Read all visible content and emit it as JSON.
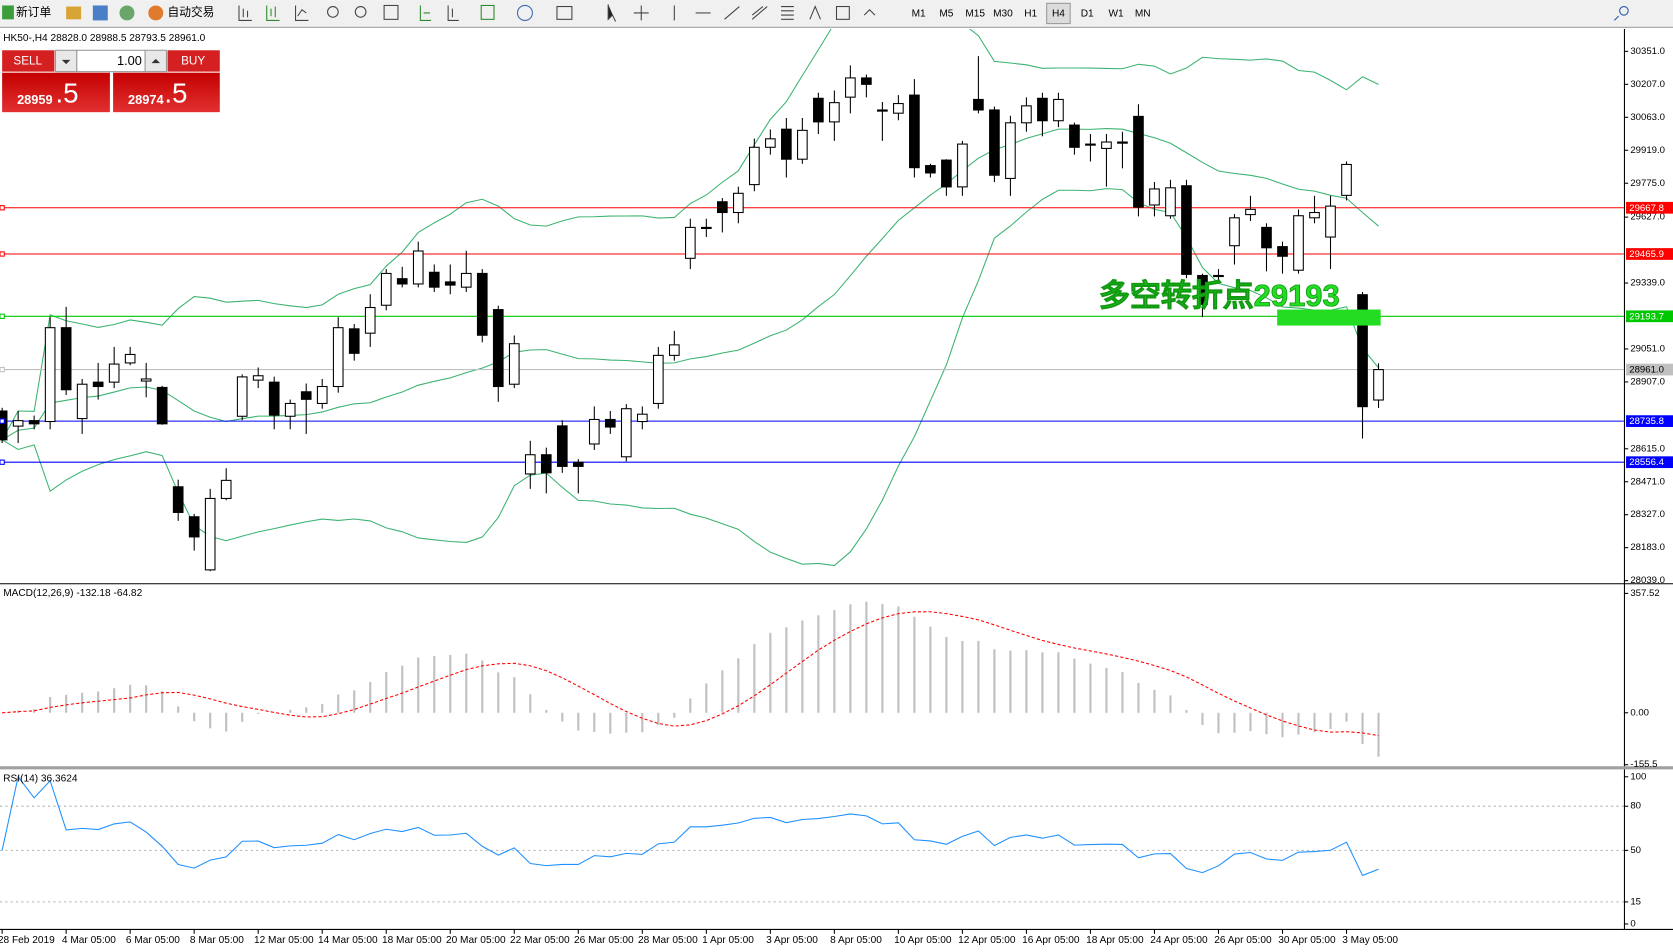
{
  "toolbar": {
    "new_order": "新订单",
    "auto_trading": "自动交易",
    "timeframes": [
      "M1",
      "M5",
      "M15",
      "M30",
      "H1",
      "H4",
      "D1",
      "W1",
      "MN"
    ],
    "active": "H4"
  },
  "trade_panel": {
    "sell": "SELL",
    "buy": "BUY",
    "lots": "1.00",
    "sell_price": "28959",
    "sell_pips": ".5",
    "buy_price": "28974",
    "buy_pips": ".5"
  },
  "chart_data": {
    "type": "candlestick",
    "title": "HK50-,H4  28828.0 28988.5 28793.5 28961.0",
    "categories": [
      "28 Feb 2019",
      null,
      null,
      null,
      "4 Mar 05:00",
      null,
      null,
      null,
      "6 Mar 05:00",
      null,
      null,
      null,
      "8 Mar 05:00",
      null,
      null,
      null,
      "12 Mar 05:00",
      null,
      null,
      null,
      "14 Mar 05:00",
      null,
      null,
      null,
      "18 Mar 05:00",
      null,
      null,
      null,
      "20 Mar 05:00",
      null,
      null,
      null,
      "22 Mar 05:00",
      null,
      null,
      null,
      "26 Mar 05:00",
      null,
      null,
      null,
      "28 Mar 05:00",
      null,
      null,
      null,
      "1 Apr 05:00",
      null,
      null,
      null,
      "3 Apr 05:00",
      null,
      null,
      null,
      "8 Apr 05:00",
      null,
      null,
      null,
      "10 Apr 05:00",
      null,
      null,
      null,
      "12 Apr 05:00",
      null,
      null,
      null,
      "16 Apr 05:00",
      null,
      null,
      null,
      "18 Apr 05:00",
      null,
      null,
      null,
      "24 Apr 05:00",
      null,
      null,
      null,
      "26 Apr 05:00",
      null,
      null,
      null,
      "30 Apr 05:00",
      null,
      null,
      null,
      "3 May 05:00",
      null,
      null
    ],
    "open": [
      28780,
      28714,
      28738,
      28734,
      29144,
      28747,
      28906,
      28906,
      28990,
      28911,
      28883,
      28449,
      28318,
      28086,
      28398,
      28757,
      28915,
      28906,
      28757,
      28864,
      28813,
      28887,
      29139,
      29120,
      29242,
      29358,
      29335,
      29386,
      29344,
      29321,
      29381,
      29223,
      28897,
      28505,
      28589,
      28715,
      28556,
      28636,
      28743,
      28580,
      28734,
      28813,
      29023,
      29447,
      29578,
      29694,
      29647,
      29769,
      29932,
      30011,
      29880,
      30146,
      30043,
      30151,
      30235,
      30095,
      30081,
      30160,
      29852,
      29876,
      29759,
      30141,
      30095,
      29796,
      30039,
      30146,
      30048,
      30029,
      29946,
      29927,
      29955,
      30067,
      29680,
      29633,
      29764,
      29372,
      29372,
      29502,
      29638,
      29582,
      29498,
      29395,
      29624,
      29540,
      29722,
      29288,
      28828
    ],
    "high": [
      28794,
      28780,
      28760,
      29190,
      29235,
      28920,
      28990,
      29060,
      29060,
      28990,
      28890,
      28480,
      28330,
      28440,
      28530,
      28940,
      28970,
      28930,
      28830,
      28900,
      28920,
      29190,
      29160,
      29290,
      29400,
      29410,
      29520,
      29420,
      29420,
      29480,
      29400,
      29240,
      29110,
      28650,
      28620,
      28740,
      28570,
      28800,
      28780,
      28810,
      28800,
      29060,
      29130,
      29620,
      29620,
      29710,
      29760,
      29970,
      30010,
      30060,
      30060,
      30170,
      30180,
      30290,
      30250,
      30130,
      30160,
      30230,
      29860,
      29880,
      29960,
      30330,
      30110,
      30070,
      30150,
      30170,
      30170,
      30040,
      29990,
      29990,
      30000,
      30120,
      29780,
      29790,
      29790,
      29380,
      29400,
      29640,
      29720,
      29600,
      29520,
      29660,
      29720,
      29720,
      29870,
      29300,
      28988.5
    ],
    "low": [
      28640,
      28640,
      28700,
      28700,
      28850,
      28680,
      28830,
      28880,
      28980,
      28840,
      28720,
      28300,
      28170,
      28080,
      28390,
      28740,
      28880,
      28700,
      28700,
      28680,
      28790,
      28860,
      29000,
      29060,
      29220,
      29320,
      29320,
      29300,
      29290,
      29300,
      29080,
      28820,
      28880,
      28440,
      28420,
      28510,
      28420,
      28610,
      28680,
      28560,
      28700,
      28790,
      29000,
      29400,
      29540,
      29560,
      29600,
      29740,
      29900,
      29800,
      29860,
      29990,
      29960,
      30080,
      30150,
      29960,
      30050,
      29800,
      29800,
      29720,
      29720,
      30080,
      29780,
      29720,
      30000,
      29980,
      30020,
      29900,
      29870,
      29760,
      29840,
      29630,
      29630,
      29620,
      29360,
      29190,
      29340,
      29420,
      29610,
      29390,
      29380,
      29380,
      29600,
      29400,
      29700,
      28660,
      28793.5
    ],
    "close": [
      28654,
      28738,
      28724,
      29144,
      28873,
      28897,
      28887,
      28985,
      29027,
      28920,
      28724,
      28337,
      28230,
      28398,
      28477,
      28929,
      28934,
      28762,
      28813,
      28831,
      28887,
      29144,
      29032,
      29232,
      29381,
      29335,
      29479,
      29321,
      29330,
      29381,
      29111,
      28887,
      29074,
      28589,
      28510,
      28538,
      28538,
      28743,
      28710,
      28790,
      28766,
      29023,
      29069,
      29582,
      29582,
      29647,
      29731,
      29932,
      29969,
      29880,
      30006,
      30043,
      30127,
      30235,
      30207,
      30090,
      30123,
      29843,
      29820,
      29759,
      29946,
      30095,
      29810,
      30039,
      30113,
      30048,
      30141,
      29932,
      29946,
      29955,
      29950,
      29671,
      29750,
      29755,
      29377,
      29246,
      29372,
      29624,
      29661,
      29493,
      29456,
      29633,
      29647,
      29675,
      29857,
      28799,
      28961
    ],
    "up_color": "#ffffff",
    "down_color": "#000000",
    "band_color": "#3cb371",
    "ylim": [
      28030,
      30435
    ],
    "yticks": [
      {
        "value": 30351,
        "label": "30351.0"
      },
      {
        "value": 30207,
        "label": "30207.0"
      },
      {
        "value": 30063,
        "label": "30063.0"
      },
      {
        "value": 29919,
        "label": "29919.0"
      },
      {
        "value": 29775,
        "label": "29775.0"
      },
      {
        "value": 29627,
        "label": "29627.0"
      },
      {
        "value": 29339,
        "label": "29339.0"
      },
      {
        "value": 29051,
        "label": "29051.0"
      },
      {
        "value": 28907,
        "label": "28907.0"
      },
      {
        "value": 28615,
        "label": "28615.0"
      },
      {
        "value": 28471,
        "label": "28471.0"
      },
      {
        "value": 28327,
        "label": "28327.0"
      },
      {
        "value": 28183,
        "label": "28183.0"
      },
      {
        "value": 28039,
        "label": "28039.0"
      }
    ],
    "levels": [
      {
        "value": 29667.8,
        "color": "#ff0000"
      },
      {
        "value": 29465.9,
        "color": "#ff0000"
      },
      {
        "value": 29193.7,
        "color": "#00c800"
      },
      {
        "value": 28961,
        "label": "28961.0",
        "color": "#c0c0c0"
      },
      {
        "value": 28735.8,
        "color": "#0000ff"
      },
      {
        "value": 28556.4,
        "color": "#0000ff"
      }
    ],
    "annotation": "多空转折点29193",
    "annotation_color": "#22dd22"
  },
  "macd": {
    "label": "MACD(12,26,9) -132.18 -64.82",
    "ylim": [
      -160,
      380
    ],
    "yticks": [
      {
        "value": 357.52,
        "label": "357.52"
      },
      {
        "value": 0,
        "label": "0.00"
      },
      {
        "value": -155.5,
        "label": "-155.5"
      }
    ],
    "bar_color": "#c0c0c0",
    "signal_color": "#ff0000"
  },
  "rsi": {
    "label": "RSI(14) 36.3624",
    "ylim": [
      -3,
      105
    ],
    "yticks": [
      100,
      80,
      50,
      15,
      0
    ],
    "color": "#1e90ff"
  }
}
